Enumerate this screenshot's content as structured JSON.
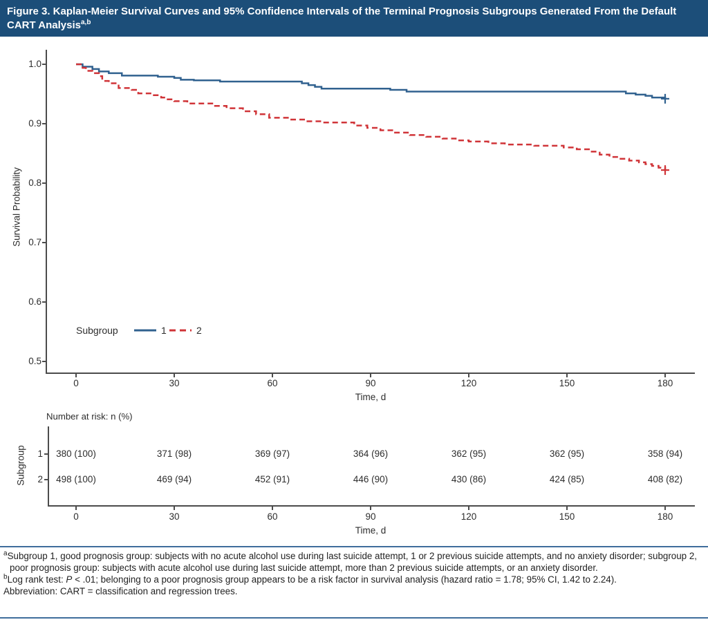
{
  "figure": {
    "title": "Figure 3. Kaplan-Meier Survival Curves and 95% Confidence Intervals of the Terminal Prognosis Subgroups Generated From the Default CART Analysis",
    "title_superscript": "a,b"
  },
  "colors": {
    "header_bg": "#1c4e79",
    "rule_blue": "#3f6d9c",
    "axis": "#4b4b4b",
    "subgroup1_blue": "#30618f",
    "subgroup2_red": "#d03438"
  },
  "chart_data": {
    "type": "line",
    "subtype": "kaplan-meier-step-survival",
    "title": "",
    "xlabel": "Time, d",
    "ylabel": "Survival Probability",
    "xlim": [
      0,
      189
    ],
    "ylim": [
      0.48,
      1.01
    ],
    "x_ticks": [
      0,
      30,
      60,
      90,
      120,
      150,
      180
    ],
    "y_ticks": [
      "1.0",
      "0.9",
      "0.8",
      "0.7",
      "0.6",
      "0.5"
    ],
    "grid": false,
    "legend": {
      "title": "Subgroup",
      "position": "inside-lower-left",
      "entries": [
        {
          "label": "1",
          "line": "solid",
          "color": "#30618f"
        },
        {
          "label": "2",
          "line": "dashed",
          "color": "#d03438"
        }
      ]
    },
    "series": [
      {
        "name": "Subgroup 1",
        "style": "solid",
        "color": "#30618f",
        "censor_mark": [
          180,
          0.942
        ],
        "points": [
          [
            0,
            1.0
          ],
          [
            2,
            0.996
          ],
          [
            5,
            0.992
          ],
          [
            7,
            0.988
          ],
          [
            10,
            0.985
          ],
          [
            14,
            0.981
          ],
          [
            25,
            0.979
          ],
          [
            30,
            0.977
          ],
          [
            32,
            0.974
          ],
          [
            36,
            0.973
          ],
          [
            44,
            0.971
          ],
          [
            69,
            0.968
          ],
          [
            71,
            0.965
          ],
          [
            73,
            0.962
          ],
          [
            75,
            0.959
          ],
          [
            96,
            0.957
          ],
          [
            101,
            0.954
          ],
          [
            168,
            0.951
          ],
          [
            171,
            0.949
          ],
          [
            174,
            0.947
          ],
          [
            176,
            0.944
          ],
          [
            180,
            0.942
          ]
        ]
      },
      {
        "name": "Subgroup 2",
        "style": "dashed",
        "color": "#d03438",
        "censor_mark": [
          180,
          0.822
        ],
        "points": [
          [
            0,
            1.0
          ],
          [
            2,
            0.994
          ],
          [
            3,
            0.989
          ],
          [
            5,
            0.985
          ],
          [
            7,
            0.98
          ],
          [
            8,
            0.972
          ],
          [
            10,
            0.968
          ],
          [
            13,
            0.96
          ],
          [
            17,
            0.957
          ],
          [
            19,
            0.951
          ],
          [
            23,
            0.948
          ],
          [
            26,
            0.944
          ],
          [
            28,
            0.941
          ],
          [
            30,
            0.938
          ],
          [
            34,
            0.934
          ],
          [
            42,
            0.93
          ],
          [
            46,
            0.926
          ],
          [
            51,
            0.921
          ],
          [
            55,
            0.916
          ],
          [
            59,
            0.91
          ],
          [
            65,
            0.907
          ],
          [
            70,
            0.904
          ],
          [
            75,
            0.902
          ],
          [
            85,
            0.897
          ],
          [
            89,
            0.893
          ],
          [
            93,
            0.889
          ],
          [
            97,
            0.885
          ],
          [
            102,
            0.881
          ],
          [
            107,
            0.878
          ],
          [
            112,
            0.875
          ],
          [
            116,
            0.872
          ],
          [
            120,
            0.87
          ],
          [
            126,
            0.867
          ],
          [
            131,
            0.865
          ],
          [
            140,
            0.863
          ],
          [
            149,
            0.86
          ],
          [
            153,
            0.857
          ],
          [
            157,
            0.853
          ],
          [
            160,
            0.848
          ],
          [
            163,
            0.844
          ],
          [
            166,
            0.841
          ],
          [
            169,
            0.838
          ],
          [
            172,
            0.835
          ],
          [
            174,
            0.832
          ],
          [
            176,
            0.829
          ],
          [
            178,
            0.826
          ],
          [
            180,
            0.822
          ]
        ]
      }
    ]
  },
  "risk_table": {
    "header": "Number at risk: n (%)",
    "row_axis_label": "Subgroup",
    "xlabel": "Time, d",
    "times": [
      0,
      30,
      60,
      90,
      120,
      150,
      180
    ],
    "rows": [
      {
        "label": "1",
        "values": [
          "380 (100)",
          "371 (98)",
          "369 (97)",
          "364 (96)",
          "362 (95)",
          "362 (95)",
          "358 (94)"
        ]
      },
      {
        "label": "2",
        "values": [
          "498 (100)",
          "469 (94)",
          "452 (91)",
          "446 (90)",
          "430 (86)",
          "424 (85)",
          "408 (82)"
        ]
      }
    ]
  },
  "footnotes": {
    "a_sup": "a",
    "a_text": "Subgroup 1, good prognosis group: subjects with no acute alcohol use during last suicide attempt, 1 or 2 previous suicide attempts, and no anxiety disorder; subgroup 2, poor prognosis group: subjects with acute alcohol use during last suicide attempt, more than 2 previous suicide attempts, or an anxiety disorder.",
    "b_sup": "b",
    "b_prefix": "Log rank test: ",
    "b_italic": "P",
    "b_text": " < .01; belonging to a poor prognosis group appears to be a risk factor in survival analysis (hazard ratio = 1.78; 95% CI,  1.42 to 2.24).",
    "abbreviation": "Abbreviation: CART = classification and regression trees."
  }
}
